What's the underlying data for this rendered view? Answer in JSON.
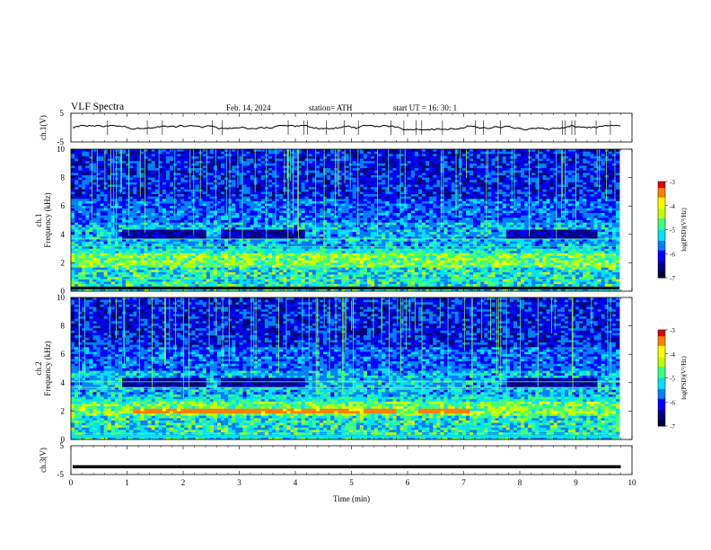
{
  "header": {
    "title": "VLF  Spectra",
    "date": "Feb. 14, 2024",
    "station": "station= ATH",
    "start_ut": "start  UT  =   16: 30: 1"
  },
  "colors": {
    "cmap": [
      "#00003a",
      "#000080",
      "#0000ff",
      "#0080ff",
      "#00e0ff",
      "#40ff80",
      "#c0ff00",
      "#ffff00",
      "#ff8000",
      "#e00000",
      "#ffffff"
    ],
    "waveform": "#000000"
  },
  "chart_data": [
    {
      "type": "line",
      "panel": "ch1-voltage",
      "ylabel": "ch.1(V)",
      "xlim": [
        0,
        10
      ],
      "ylim": [
        -5,
        5
      ],
      "yticks": [
        "5",
        "-5"
      ],
      "series": [
        {
          "mean": 0.0,
          "spread": 0.8
        }
      ]
    },
    {
      "type": "heatmap",
      "panel": "ch1-spectrogram",
      "ylabel": "ch.1\nFrequency  (kHz)",
      "xlim": [
        0,
        10
      ],
      "ylim": [
        0,
        10
      ],
      "yticks": [
        "0",
        "2",
        "4",
        "6",
        "8",
        "10"
      ],
      "colorbar": {
        "label": "log(PSD)(V²/Hz)",
        "range": [
          -7,
          -3
        ],
        "ticks": [
          "-3",
          "-4",
          "-5",
          "-6",
          "-7"
        ]
      }
    },
    {
      "type": "heatmap",
      "panel": "ch2-spectrogram",
      "ylabel": "ch.2\nFrequency  (kHz)",
      "xlim": [
        0,
        10
      ],
      "ylim": [
        0,
        10
      ],
      "yticks": [
        "0",
        "2",
        "4",
        "6",
        "8",
        "10"
      ],
      "colorbar": {
        "label": "log(PSD)(V²/Hz)",
        "range": [
          -7,
          -3
        ],
        "ticks": [
          "-3",
          "-4",
          "-5",
          "-6",
          "-7"
        ]
      }
    },
    {
      "type": "line",
      "panel": "ch3-voltage",
      "ylabel": "ch.3(V)",
      "xlim": [
        0,
        10
      ],
      "ylim": [
        -5,
        5
      ],
      "yticks": [
        "5",
        "-5"
      ],
      "xlabel": "Time  (min)",
      "xticks": [
        "0",
        "1",
        "2",
        "3",
        "4",
        "5",
        "6",
        "7",
        "8",
        "9",
        "10"
      ],
      "series": [
        {
          "constant": -2.3
        }
      ]
    }
  ]
}
